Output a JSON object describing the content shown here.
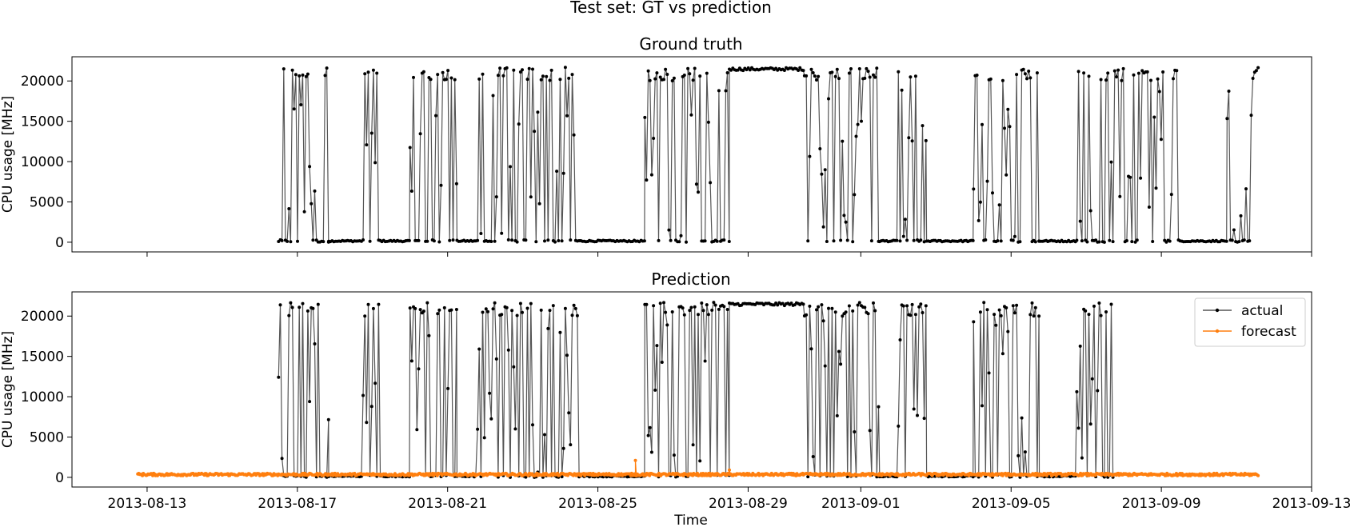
{
  "figure_title": "Test set: GT vs prediction",
  "colors": {
    "actual": "#000000",
    "forecast": "#ff7f0e",
    "line": "#555555"
  },
  "chart_data": [
    {
      "type": "line",
      "title": "Ground truth",
      "xlabel": "",
      "ylabel": "CPU usage [MHz]",
      "xlim": [
        "2013-08-11T00:00",
        "2013-09-13T00:00"
      ],
      "ylim": [
        -1200,
        23000
      ],
      "x_ticks": [
        "2013-08-13",
        "2013-08-17",
        "2013-08-21",
        "2013-08-25",
        "2013-08-29",
        "2013-09-01",
        "2013-09-05",
        "2013-09-09",
        "2013-09-13"
      ],
      "y_ticks": [
        0,
        5000,
        10000,
        15000,
        20000
      ],
      "legend": null,
      "series": [
        {
          "key": "actual",
          "style": "line-markers",
          "segments": [
            [
              "2013-08-16T12:00",
              "2013-08-17T20:00",
              "burst"
            ],
            [
              "2013-08-17T20:00",
              "2013-08-18T18:00",
              "low"
            ],
            [
              "2013-08-18T18:00",
              "2013-08-19T06:00",
              "burst"
            ],
            [
              "2013-08-19T06:00",
              "2013-08-20T00:00",
              "low"
            ],
            [
              "2013-08-20T00:00",
              "2013-08-21T06:00",
              "burst"
            ],
            [
              "2013-08-21T06:00",
              "2013-08-21T18:00",
              "low"
            ],
            [
              "2013-08-21T18:00",
              "2013-08-24T12:00",
              "burst"
            ],
            [
              "2013-08-24T12:00",
              "2013-08-26T06:00",
              "low"
            ],
            [
              "2013-08-26T06:00",
              "2013-08-28T12:00",
              "burst"
            ],
            [
              "2013-08-28T12:00",
              "2013-08-30T12:00",
              "high"
            ],
            [
              "2013-08-30T12:00",
              "2013-09-01T12:00",
              "burst"
            ],
            [
              "2013-09-01T12:00",
              "2013-09-02T00:00",
              "low"
            ],
            [
              "2013-09-02T00:00",
              "2013-09-02T18:00",
              "burst"
            ],
            [
              "2013-09-02T18:00",
              "2013-09-04T00:00",
              "low"
            ],
            [
              "2013-09-04T00:00",
              "2013-09-05T18:00",
              "burst"
            ],
            [
              "2013-09-05T18:00",
              "2013-09-06T18:00",
              "low"
            ],
            [
              "2013-09-06T18:00",
              "2013-09-09T12:00",
              "burst"
            ],
            [
              "2013-09-09T12:00",
              "2013-09-10T18:00",
              "low"
            ],
            [
              "2013-09-10T18:00",
              "2013-09-11T14:00",
              "burst"
            ]
          ]
        }
      ]
    },
    {
      "type": "line",
      "title": "Prediction",
      "xlabel": "Time",
      "ylabel": "CPU usage [MHz]",
      "xlim": [
        "2013-08-11T00:00",
        "2013-09-13T00:00"
      ],
      "ylim": [
        -1200,
        23000
      ],
      "x_ticks": [
        "2013-08-13",
        "2013-08-17",
        "2013-08-21",
        "2013-08-25",
        "2013-08-29",
        "2013-09-01",
        "2013-09-05",
        "2013-09-09",
        "2013-09-13"
      ],
      "y_ticks": [
        0,
        5000,
        10000,
        15000,
        20000
      ],
      "legend": "top-right",
      "series": [
        {
          "key": "actual",
          "name": "actual",
          "style": "line-markers",
          "segments": [
            [
              "2013-08-16T12:00",
              "2013-08-17T20:00",
              "burst"
            ],
            [
              "2013-08-17T20:00",
              "2013-08-18T18:00",
              "low"
            ],
            [
              "2013-08-18T18:00",
              "2013-08-19T06:00",
              "burst"
            ],
            [
              "2013-08-19T06:00",
              "2013-08-20T00:00",
              "low"
            ],
            [
              "2013-08-20T00:00",
              "2013-08-21T06:00",
              "burst"
            ],
            [
              "2013-08-21T06:00",
              "2013-08-21T18:00",
              "low"
            ],
            [
              "2013-08-21T18:00",
              "2013-08-24T12:00",
              "burst"
            ],
            [
              "2013-08-24T12:00",
              "2013-08-26T06:00",
              "low"
            ],
            [
              "2013-08-26T06:00",
              "2013-08-28T12:00",
              "burst"
            ],
            [
              "2013-08-28T12:00",
              "2013-08-30T12:00",
              "high"
            ],
            [
              "2013-08-30T12:00",
              "2013-09-01T12:00",
              "burst"
            ],
            [
              "2013-09-01T12:00",
              "2013-09-02T00:00",
              "low"
            ],
            [
              "2013-09-02T00:00",
              "2013-09-02T18:00",
              "burst"
            ],
            [
              "2013-09-02T18:00",
              "2013-09-04T00:00",
              "low"
            ],
            [
              "2013-09-04T00:00",
              "2013-09-05T18:00",
              "burst"
            ],
            [
              "2013-09-05T18:00",
              "2013-09-06T18:00",
              "low"
            ],
            [
              "2013-09-06T18:00",
              "2013-09-07T18:00",
              "burst"
            ]
          ]
        },
        {
          "key": "forecast",
          "name": "forecast",
          "style": "line-markers",
          "x_range": [
            "2013-08-12T18:00",
            "2013-09-11T14:00"
          ],
          "baseline": 350,
          "noise": 300,
          "spikes": [
            [
              "2013-08-26T00:00",
              2100
            ],
            [
              "2013-08-28T12:00",
              900
            ]
          ]
        }
      ]
    }
  ]
}
